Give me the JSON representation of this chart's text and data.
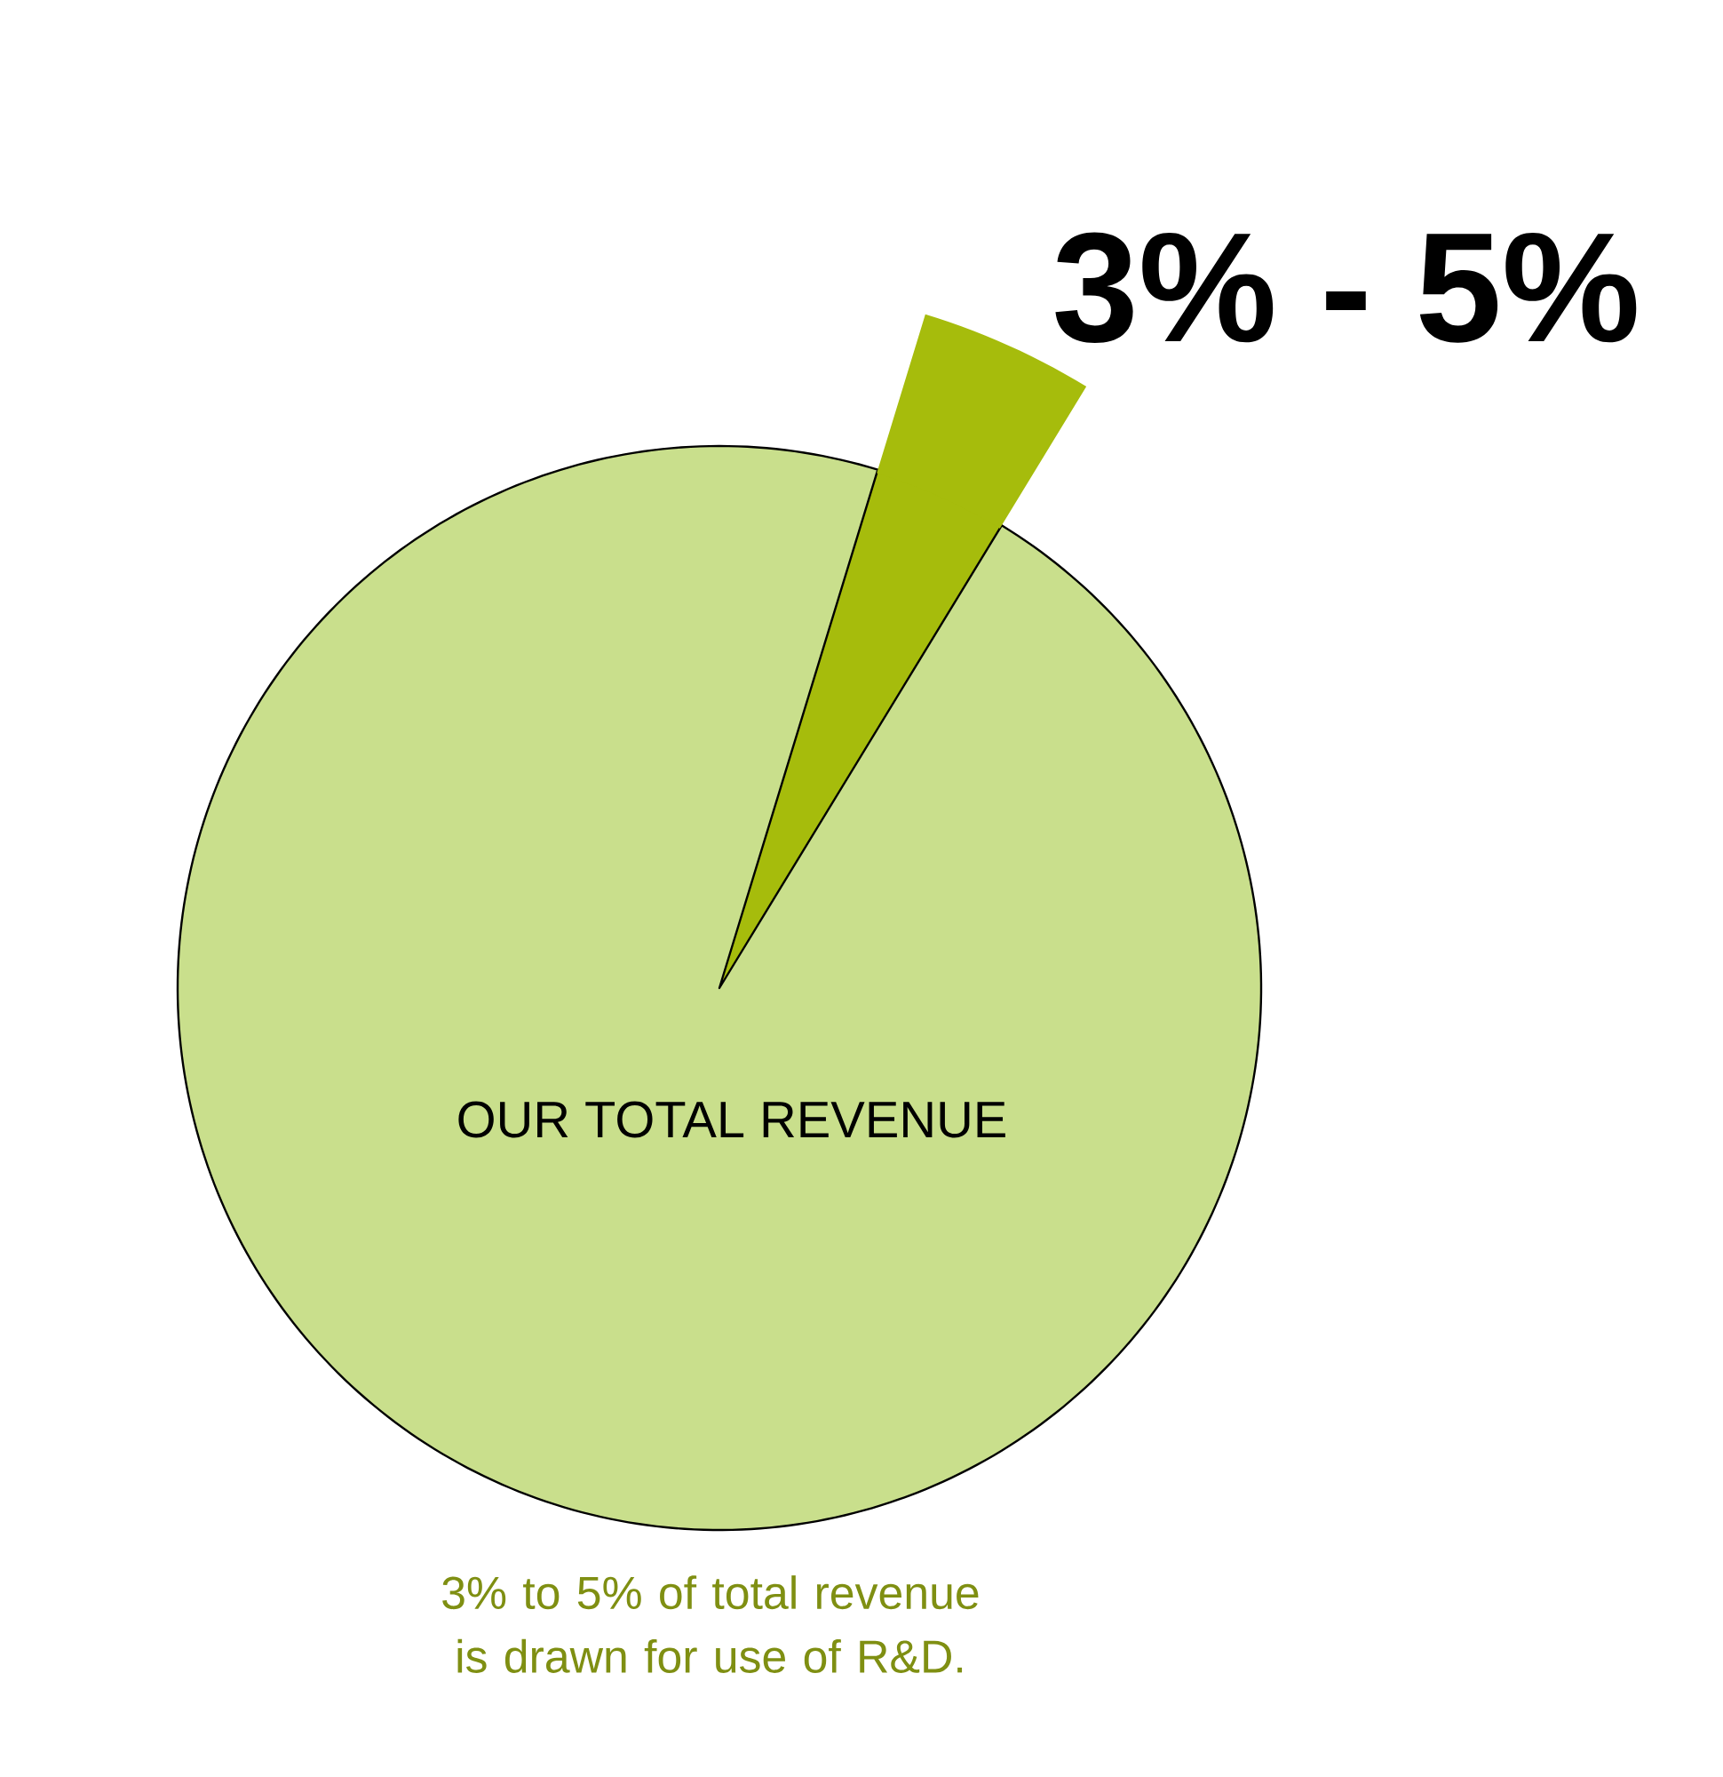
{
  "chart_data": {
    "type": "pie",
    "categories": [
      "3% - 5%",
      "OUR TOTAL REVENUE"
    ],
    "values": [
      4,
      96
    ],
    "colors": [
      "#a6bc0c",
      "#c9df8c"
    ],
    "annotations": [
      "3% to 5% of total revenue is drawn for use of R&D."
    ]
  }
}
